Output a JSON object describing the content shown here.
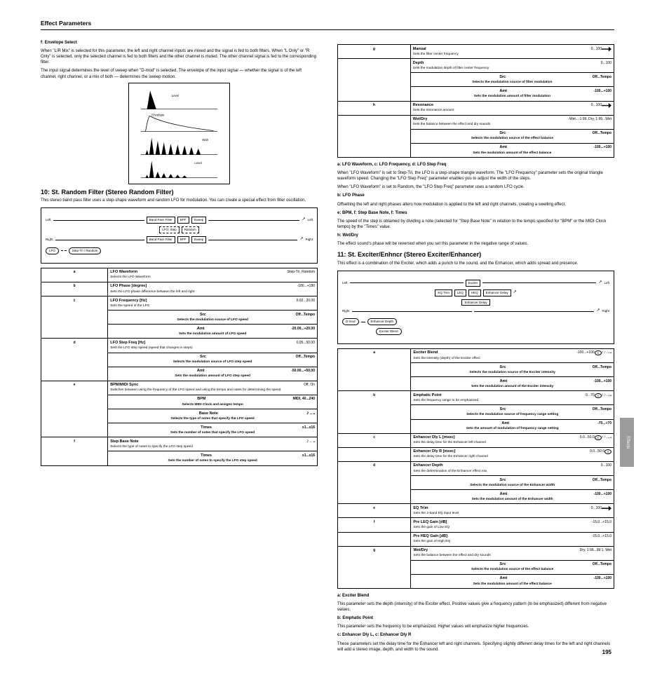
{
  "header": "Effect Parameters",
  "page_number": "195",
  "side_tab": "Effects",
  "left": {
    "intro": {
      "label": "f: Envelope Select",
      "p1": "When \"L/R Mix\" is selected for this parameter, the left and right channel inputs are mixed and the signal is fed to both filters. When \"L Only\" or \"R Only\" is selected, only the selected channel is fed to both filters and the other channel is muted. The other channel signal is fed to the corresponding filter.",
      "p2": "The input signal determines the level of sweep when \"D-mod\" is selected. The envelope of the input signal — whether the signal is of the left channel, right channel, or a mix of both — determines the sweep motion."
    },
    "envbox_labels": {
      "src": "Level",
      "env": "Envelope",
      "out1": "Wah",
      "out2": "Level"
    },
    "fx10": {
      "title": "10: St. Random Filter (Stereo Random Filter)",
      "desc": "This stereo band pass filter uses a step-shape waveform and random LFO for modulation. You can create a special effect from filter oscillation.",
      "diagram_labels": {
        "left_in": "Left",
        "right_in": "Right",
        "left_out": "Left",
        "right_out": "Right",
        "blocks": [
          "Band Pass Filter",
          "BPF",
          "Sweep",
          "LFO: Step",
          "Random LFO",
          "LFO Phase"
        ],
        "ovals": [
          "LFO",
          "Step-Tri / Random"
        ]
      },
      "rows": [
        {
          "n": "a",
          "name": "LFO Waveform",
          "val": "Step-Tri, Random",
          "desc": "Selects the LFO Waveform"
        },
        {
          "n": "b",
          "name": "LFO Phase [degree]",
          "val": "-180...+180",
          "desc": "Sets the LFO phase difference between the left and right"
        },
        {
          "n": "c",
          "name": "LFO Frequency [Hz]",
          "val": "0.02...20.00",
          "desc": "Sets the speed of the LFO",
          "sub": [
            {
              "name": "Src",
              "val": "Off...Tempo",
              "desc": "Selects the modulation source of LFO speed"
            },
            {
              "name": "Amt",
              "val": "-20.00...+20.00",
              "desc": "Sets the modulation amount of LFO speed"
            }
          ]
        },
        {
          "n": "d",
          "name": "LFO Step Freq [Hz]",
          "val": "0.05...50.00",
          "desc": "Sets the LFO step speed (speed that changes in steps)",
          "sub": [
            {
              "name": "Src",
              "val": "Off...Tempo",
              "desc": "Selects the modulation source of LFO step speed"
            },
            {
              "name": "Amt",
              "val": "-50.00...+50.00",
              "desc": "Sets the modulation amount of LFO step speed"
            }
          ]
        },
        {
          "n": "e",
          "name": "BPM/MIDI Sync",
          "val": "Off, On",
          "desc": "Switches between using the frequency of the LFO speed and using the tempo and notes for determining the speed",
          "sub": [
            {
              "name": "BPM",
              "val": "MIDI, 40...240",
              "desc": "Selects MIDI Clock and assigns tempo"
            },
            {
              "name": "Base Note",
              "val": "𝅘𝅥𝅯 ... 𝅝",
              "desc": "Selects the type of notes that specify the LFO speed"
            },
            {
              "name": "Times",
              "val": "x1...x16",
              "desc": "Sets the number of notes that specify the LFO speed"
            }
          ]
        },
        {
          "n": "f",
          "name": "Step Base Note",
          "val": "𝅘𝅥𝅯 ... 𝅝",
          "desc": "Selects the type of notes to specify the LFO step speed",
          "sub": [
            {
              "name": "Times",
              "val": "x1...x16",
              "desc": "Sets the number of notes to specify the LFO step speed"
            }
          ]
        }
      ]
    }
  },
  "right": {
    "top_rows": [
      {
        "n": "g",
        "name": "Manual",
        "val": "0...100",
        "desc": "Sets the filter center frequency",
        "icon": "dmod"
      },
      {
        "n": "",
        "name": "Depth",
        "val": "0...100",
        "desc": "Sets the modulation depth of filter center frequency",
        "sub": [
          {
            "name": "Src",
            "val": "Off...Tempo",
            "desc": "Selects the modulation source of filter modulation"
          },
          {
            "name": "Amt",
            "val": "-100...+100",
            "desc": "Sets the modulation amount of filter modulation"
          }
        ]
      },
      {
        "n": "h",
        "name": "Resonance",
        "val": "0...100",
        "desc": "Sets the resonance amount",
        "icon": "dmod"
      },
      {
        "n": "",
        "name": "Wet/Dry",
        "val": "-Wet...-1:99, Dry, 1:99...Wet",
        "desc": "Sets the balance between the effect and dry sounds",
        "sub": [
          {
            "name": "Src",
            "val": "Off...Tempo",
            "desc": "Selects the modulation source of the effect balance"
          },
          {
            "name": "Amt",
            "val": "-100...+100",
            "desc": "Sets the modulation amount of the effect balance"
          }
        ]
      }
    ],
    "mid_text": {
      "l1": "a: LFO Waveform, c: LFO Frequency, d: LFO Step Freq",
      "p1": "When \"LFO Waveform\" is set to Step-Tri, the LFO is a step-shape triangle waveform. The \"LFO Frequency\" parameter sets the original triangle waveform speed. Changing the \"LFO Step Freq\" parameter enables you to adjust the width of the steps.",
      "p2": "When \"LFO Waveform\" is set to Random, the \"LFO Step Freq\" parameter uses a random LFO cycle.",
      "l2": "b: LFO Phase",
      "p3": "Offsetting the left and right phases alters how modulation is applied to the left and right channels, creating a swelling effect.",
      "l3": "e: BPM, f: Step Base Note, f: Times",
      "p4": "The speed of the step is obtained by dividing a note (selected for \"Step Base Note\" in relation to the tempo specified for \"BPM\" or the MIDI Clock tempo) by the \"Times\" value.",
      "l4": "h: Wet/Dry",
      "p5": "The effect sound's phase will be reversed when you set this parameter in the negative range of values."
    },
    "fx11": {
      "title": "11: St. Exciter/Enhncr (Stereo Exciter/Enhancer)",
      "desc": "This effect is a combination of the Exciter, which adds a punch to the sound, and the Enhancer, which adds spread and presence.",
      "diagram_labels": {
        "left_in": "Left",
        "right_in": "Right",
        "left_out": "Left",
        "right_out": "Right",
        "blocks": [
          "EQ Trim",
          "LEQ",
          "HEQ",
          "Exciter",
          "Enhancer Delay",
          "Enhancer Delay"
        ],
        "ovals": [
          "D-mod",
          "Enhancer Depth",
          "Exciter Blend"
        ]
      },
      "rows": [
        {
          "n": "a",
          "name": "Exciter Blend",
          "val": "-100...+100",
          "desc": "Sets the intensity (depth) of the Exciter effect",
          "icon": "src",
          "notes": "𝅘𝅥𝅯 𝅘𝅥𝅮 𝅘𝅥 𝅗𝅥 𝅝",
          "sub": [
            {
              "name": "Src",
              "val": "Off...Tempo",
              "desc": "Selects the modulation source of the Exciter intensity"
            },
            {
              "name": "Amt",
              "val": "-100...+100",
              "desc": "Sets the modulation amount of the Exciter intensity"
            }
          ]
        },
        {
          "n": "b",
          "name": "Emphatic Point",
          "val": "0...70",
          "desc": "Sets the frequency range to be emphasized",
          "icon": "src",
          "notes": "𝅘𝅥𝅯 𝅘𝅥𝅮 𝅘𝅥 𝅗𝅥 𝅝",
          "sub": [
            {
              "name": "Src",
              "val": "Off...Tempo",
              "desc": "Selects the modulation source of frequency range setting"
            },
            {
              "name": "Amt",
              "val": "-70...+70",
              "desc": "Sets the amount of modulation of frequency range setting"
            }
          ]
        },
        {
          "n": "c",
          "name": "Enhancer Dly L [msec]",
          "val": "0.0...50.0",
          "desc": "Sets the delay time for the Enhancer left channel",
          "icon": "src",
          "notes": "𝅘𝅥𝅯 𝅘𝅥𝅮 𝅘𝅥 𝅗𝅥 𝅝"
        },
        {
          "n": "",
          "name": "Enhancer Dly R [msec]",
          "val": "0.0...50.0",
          "desc": "Sets the delay time for the Enhancer right channel",
          "icon": "src"
        },
        {
          "n": "d",
          "name": "Enhancer Depth",
          "val": "0...100",
          "desc": "Sets the determination of the Enhancer effect mix",
          "sub": [
            {
              "name": "Src",
              "val": "Off...Tempo",
              "desc": "Selects the modulation source of the Enhancer width"
            },
            {
              "name": "Amt",
              "val": "-100...+100",
              "desc": "Sets the modulation amount of the Enhancer width"
            }
          ]
        },
        {
          "n": "e",
          "name": "EQ Trim",
          "val": "0...100",
          "desc": "Sets the 2-band EQ input level",
          "icon": "dmod"
        },
        {
          "n": "f",
          "name": "Pre LEQ Gain [dB]",
          "val": "-15.0...+15.0",
          "desc": "Sets the gain of Low EQ"
        },
        {
          "n": "",
          "name": "Pre HEQ Gain [dB]",
          "val": "-15.0...+15.0",
          "desc": "Sets the gain of High EQ"
        },
        {
          "n": "g",
          "name": "Wet/Dry",
          "val": "Dry, 1:99...99:1, Wet",
          "desc": "Sets the balance between the effect and dry sounds",
          "sub": [
            {
              "name": "Src",
              "val": "Off...Tempo",
              "desc": "Selects the modulation source of the effect balance"
            },
            {
              "name": "Amt",
              "val": "-100...+100",
              "desc": "Sets the modulation amount of the effect balance"
            }
          ]
        }
      ]
    },
    "bottom_text": {
      "l1": "a: Exciter Blend",
      "p1": "This parameter sets the depth (intensity) of the Exciter effect. Positive values give a frequency pattern (to be emphasized) different from negative values.",
      "l2": "b: Emphatic Point",
      "p2": "This parameter sets the frequency to be emphasized. Higher values will emphasize higher frequencies.",
      "l3": "c: Enhancer Dly L, c: Enhancer Dly R",
      "p3": "These parameters set the delay time for the Enhancer left and right channels. Specifying slightly different delay times for the left and right channels will add a stereo image, depth, and width to the sound."
    }
  }
}
